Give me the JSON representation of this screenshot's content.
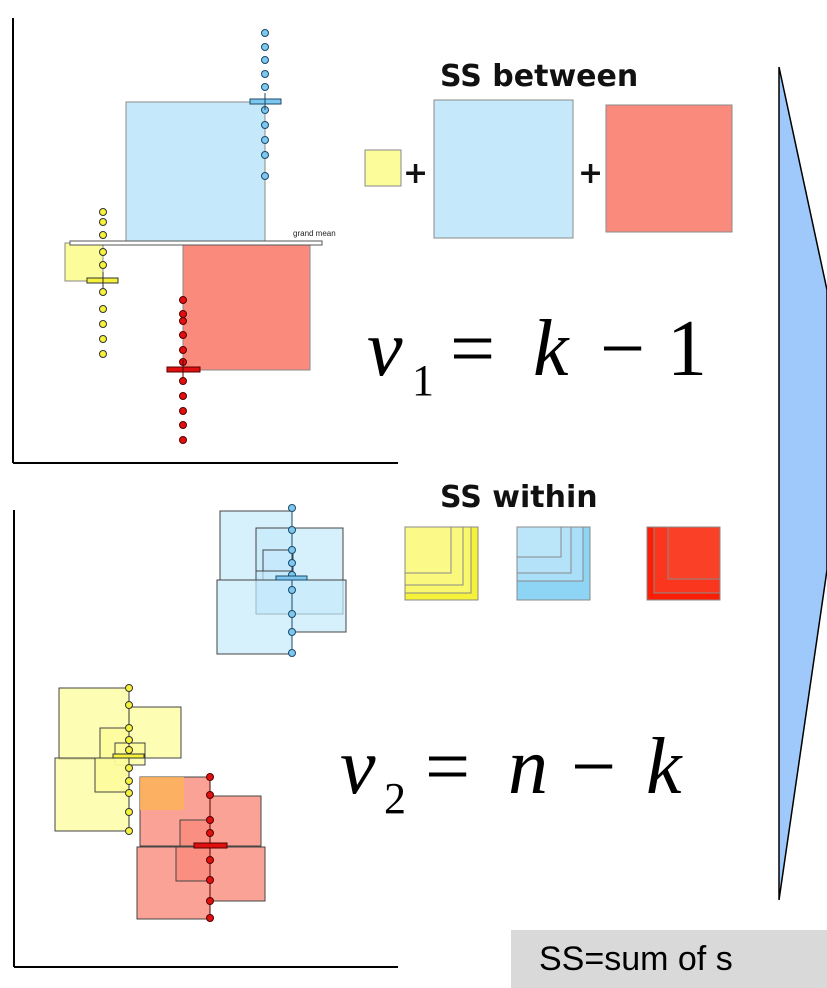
{
  "top_panel": {
    "heading": "SS between",
    "grand_mean_label": "grand mean",
    "equation": {
      "var": "v",
      "sub": "1",
      "rhs_a": "k",
      "op": "−",
      "rhs_b": "1"
    }
  },
  "bottom_panel": {
    "heading": "SS within",
    "equation": {
      "var": "v",
      "sub": "2",
      "rhs_a": "n",
      "op": "−",
      "rhs_b": "k"
    }
  },
  "plus_sign": "+",
  "equals_sign": "=",
  "footer_text": "SS=sum of s",
  "colors": {
    "yellow": "#fcfc9a",
    "blue": "#c5e9fb",
    "red": "#fa8b7c",
    "arrow": "#9ec9fa"
  }
}
